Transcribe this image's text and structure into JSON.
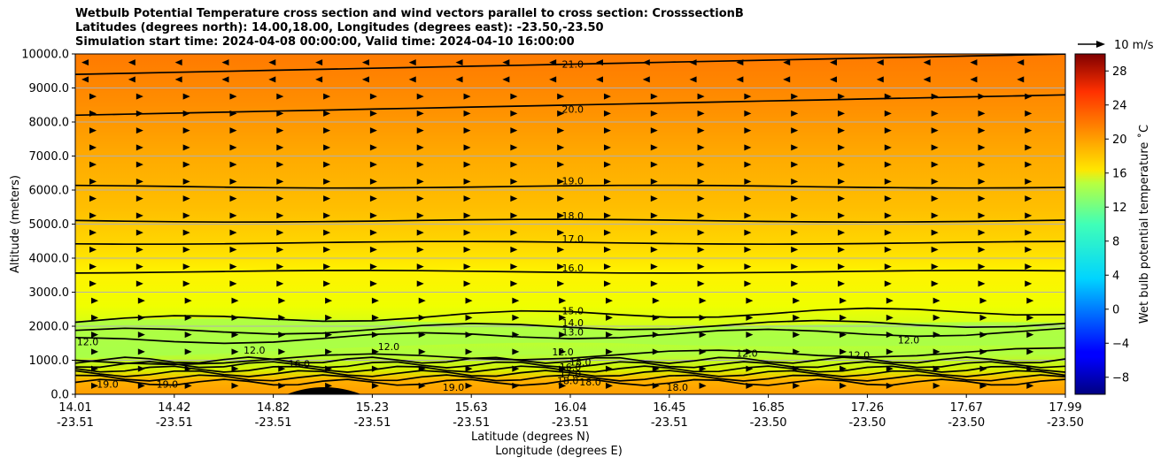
{
  "title_lines": [
    "Wetbulb Potential Temperature cross section and wind vectors parallel to cross section: CrosssectionB",
    "Latitudes (degrees north): 14.00,18.00, Longitudes (degrees east): -23.50,-23.50",
    "Simulation start time: 2024-04-08 00:00:00, Valid time: 2024-04-10 16:00:00"
  ],
  "chart_data": {
    "type": "heatmap",
    "ylabel": "Altitude (meters)",
    "xlabel_lat": "Latitude (degrees N)",
    "xlabel_lon": "Longitude (degrees E)",
    "ylim": [
      0,
      10000
    ],
    "y_ticks": [
      "0.0",
      "1000.0",
      "2000.0",
      "3000.0",
      "4000.0",
      "5000.0",
      "6000.0",
      "7000.0",
      "8000.0",
      "9000.0",
      "10000.0"
    ],
    "x_ticks": [
      {
        "lat": "14.01",
        "lon": "-23.51"
      },
      {
        "lat": "14.42",
        "lon": "-23.51"
      },
      {
        "lat": "14.82",
        "lon": "-23.51"
      },
      {
        "lat": "15.23",
        "lon": "-23.51"
      },
      {
        "lat": "15.63",
        "lon": "-23.51"
      },
      {
        "lat": "16.04",
        "lon": "-23.51"
      },
      {
        "lat": "16.45",
        "lon": "-23.51"
      },
      {
        "lat": "16.85",
        "lon": "-23.50"
      },
      {
        "lat": "17.26",
        "lon": "-23.50"
      },
      {
        "lat": "17.67",
        "lon": "-23.50"
      },
      {
        "lat": "17.99",
        "lon": "-23.50"
      }
    ],
    "grid": "horizontal",
    "colorbar": {
      "label": "Wet bulb potential temperature ˚C",
      "range": [
        -10,
        30
      ],
      "ticks": [
        "−8",
        "−4",
        "0",
        "4",
        "8",
        "12",
        "16",
        "20",
        "24",
        "28"
      ],
      "colormap": "jet"
    },
    "quiver_key": {
      "label": "10 m/s"
    },
    "contours": [
      {
        "level": "21.0",
        "altitude": 9500
      },
      {
        "level": "20.0",
        "altitude": 8300
      },
      {
        "level": "19.0",
        "altitude": 6100
      },
      {
        "level": "18.0",
        "altitude": 5100
      },
      {
        "level": "17.0",
        "altitude": 4450
      },
      {
        "level": "16.0",
        "altitude": 3600
      },
      {
        "level": "15.0",
        "altitude": 2350
      },
      {
        "level": "14.0",
        "altitude": 2000
      },
      {
        "level": "13.0",
        "altitude": 1750
      },
      {
        "level": "12.0",
        "altitude": 1150
      }
    ],
    "contour_labels": [
      {
        "text": "21.0",
        "lat": 16.01,
        "alt": 9650
      },
      {
        "text": "20.0",
        "lat": 16.01,
        "alt": 8330
      },
      {
        "text": "19.0",
        "lat": 16.01,
        "alt": 6220
      },
      {
        "text": "18.0",
        "lat": 16.01,
        "alt": 5190
      },
      {
        "text": "17.0",
        "lat": 16.01,
        "alt": 4520
      },
      {
        "text": "16.0",
        "lat": 16.01,
        "alt": 3660
      },
      {
        "text": "15.0",
        "lat": 16.01,
        "alt": 2400
      },
      {
        "text": "14.0",
        "lat": 16.01,
        "alt": 2050
      },
      {
        "text": "13.0",
        "lat": 16.01,
        "alt": 1780
      },
      {
        "text": "12.0",
        "lat": 15.97,
        "alt": 1200
      },
      {
        "text": "18.0",
        "lat": 16.04,
        "alt": 900
      },
      {
        "text": "17.0",
        "lat": 16.0,
        "alt": 550
      },
      {
        "text": "16.0",
        "lat": 16.0,
        "alt": 750
      },
      {
        "text": "18.0",
        "lat": 15.99,
        "alt": 350
      },
      {
        "text": "18.0",
        "lat": 16.08,
        "alt": 310
      },
      {
        "text": "12.0",
        "lat": 14.06,
        "alt": 1500
      },
      {
        "text": "12.0",
        "lat": 14.73,
        "alt": 1250
      },
      {
        "text": "16.0",
        "lat": 14.91,
        "alt": 850
      },
      {
        "text": "12.0",
        "lat": 15.27,
        "alt": 1350
      },
      {
        "text": "12.0",
        "lat": 16.71,
        "alt": 1150
      },
      {
        "text": "12.0",
        "lat": 17.16,
        "alt": 1100
      },
      {
        "text": "12.0",
        "lat": 17.36,
        "alt": 1550
      },
      {
        "text": "19.0",
        "lat": 14.14,
        "alt": 250
      },
      {
        "text": "19.0",
        "lat": 14.38,
        "alt": 250
      },
      {
        "text": "19.0",
        "lat": 15.53,
        "alt": 150
      },
      {
        "text": "18.0",
        "lat": 16.43,
        "alt": 150
      }
    ]
  }
}
